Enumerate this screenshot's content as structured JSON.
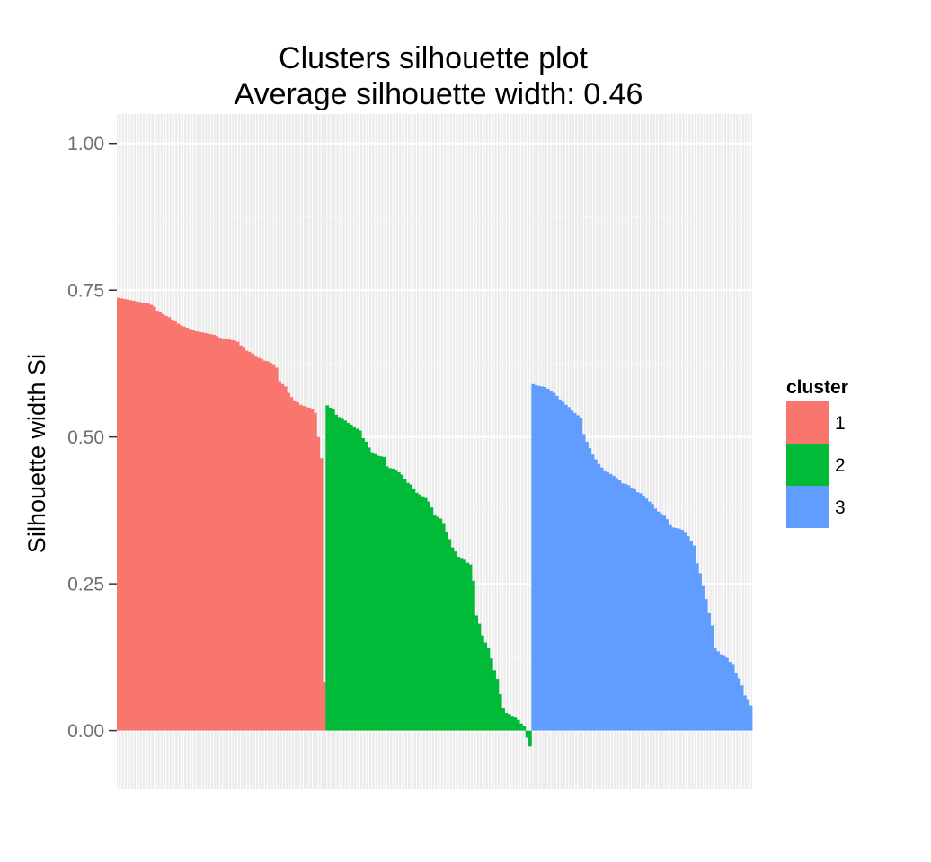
{
  "chart_data": {
    "type": "bar",
    "title": "Clusters silhouette plot",
    "subtitle": "Average silhouette width: 0.46",
    "xlabel": "",
    "ylabel": "Silhouette width Si",
    "ylim": [
      -0.1,
      1.05
    ],
    "yticks": [
      0,
      0.25,
      0.5,
      0.75,
      1
    ],
    "ytick_labels": [
      "0.00",
      "0.25",
      "0.50",
      "0.75",
      "1.00"
    ],
    "grid": true,
    "legend": {
      "title": "cluster",
      "position": "right"
    },
    "series": [
      {
        "name": "1",
        "color": "#F8766D",
        "values": [
          0.737,
          0.736,
          0.735,
          0.734,
          0.733,
          0.732,
          0.731,
          0.73,
          0.729,
          0.728,
          0.727,
          0.725,
          0.722,
          0.715,
          0.712,
          0.709,
          0.706,
          0.704,
          0.7,
          0.698,
          0.693,
          0.69,
          0.688,
          0.686,
          0.684,
          0.682,
          0.68,
          0.679,
          0.678,
          0.677,
          0.676,
          0.675,
          0.674,
          0.672,
          0.669,
          0.668,
          0.667,
          0.666,
          0.665,
          0.664,
          0.662,
          0.656,
          0.652,
          0.647,
          0.645,
          0.642,
          0.637,
          0.635,
          0.633,
          0.63,
          0.629,
          0.626,
          0.624,
          0.618,
          0.595,
          0.59,
          0.586,
          0.575,
          0.568,
          0.561,
          0.559,
          0.555,
          0.553,
          0.551,
          0.55,
          0.548,
          0.541,
          0.5,
          0.464,
          0.082
        ]
      },
      {
        "name": "2",
        "color": "#00BA38",
        "values": [
          0.554,
          0.55,
          0.547,
          0.538,
          0.534,
          0.531,
          0.528,
          0.524,
          0.521,
          0.517,
          0.514,
          0.511,
          0.498,
          0.492,
          0.482,
          0.474,
          0.471,
          0.468,
          0.467,
          0.466,
          0.45,
          0.447,
          0.446,
          0.444,
          0.44,
          0.436,
          0.429,
          0.422,
          0.419,
          0.411,
          0.405,
          0.402,
          0.399,
          0.396,
          0.39,
          0.38,
          0.367,
          0.364,
          0.361,
          0.352,
          0.339,
          0.326,
          0.312,
          0.305,
          0.296,
          0.294,
          0.291,
          0.286,
          0.283,
          0.255,
          0.196,
          0.182,
          0.162,
          0.15,
          0.14,
          0.123,
          0.103,
          0.088,
          0.062,
          0.038,
          0.03,
          0.028,
          0.025,
          0.022,
          0.018,
          0.012,
          0.008,
          -0.012,
          -0.027
        ]
      },
      {
        "name": "3",
        "color": "#619CFF",
        "values": [
          0.59,
          0.588,
          0.587,
          0.586,
          0.585,
          0.582,
          0.578,
          0.575,
          0.57,
          0.564,
          0.56,
          0.555,
          0.551,
          0.545,
          0.541,
          0.537,
          0.533,
          0.505,
          0.492,
          0.481,
          0.47,
          0.462,
          0.454,
          0.448,
          0.443,
          0.44,
          0.437,
          0.434,
          0.43,
          0.426,
          0.421,
          0.42,
          0.418,
          0.414,
          0.411,
          0.406,
          0.404,
          0.4,
          0.395,
          0.39,
          0.386,
          0.378,
          0.373,
          0.369,
          0.366,
          0.36,
          0.35,
          0.346,
          0.345,
          0.344,
          0.342,
          0.337,
          0.331,
          0.322,
          0.315,
          0.285,
          0.268,
          0.246,
          0.224,
          0.2,
          0.179,
          0.14,
          0.135,
          0.13,
          0.127,
          0.124,
          0.117,
          0.112,
          0.098,
          0.089,
          0.077,
          0.06,
          0.052,
          0.043
        ]
      }
    ]
  }
}
